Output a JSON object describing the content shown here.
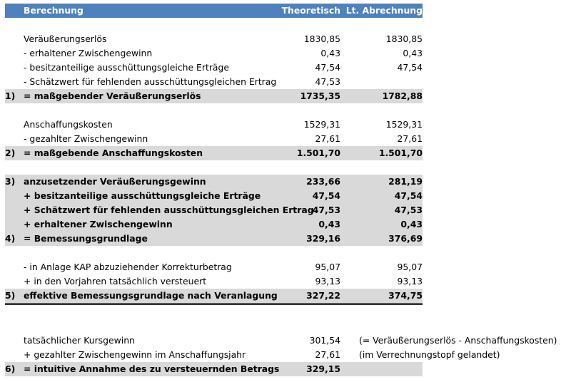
{
  "header": {
    "label": "Berechnung",
    "col_theoretisch": "Theoretisch",
    "col_abrechnung": "Lt. Abrechnung"
  },
  "rows": [
    {
      "num": "",
      "label": "Veräußerungserlös",
      "theo": "1830,85",
      "abr": "1830,85"
    },
    {
      "num": "",
      "label": "- erhaltener Zwischengewinn",
      "theo": "0,43",
      "abr": "0,43"
    },
    {
      "num": "",
      "label": "- besitzanteilige ausschüttungsgleiche Erträge",
      "theo": "47,54",
      "abr": "47,54"
    },
    {
      "num": "",
      "label": "- Schätzwert für fehlenden ausschüttungsgleichen Ertrag",
      "theo": "47,53",
      "abr": ""
    },
    {
      "num": "1)",
      "label": "= maßgebender Veräußerungserlös",
      "theo": "1735,35",
      "abr": "1782,88"
    },
    {
      "num": "",
      "label": "Anschaffungskosten",
      "theo": "1529,31",
      "abr": "1529,31"
    },
    {
      "num": "",
      "label": "- gezahlter Zwischengewinn",
      "theo": "27,61",
      "abr": "27,61"
    },
    {
      "num": "2)",
      "label": "= maßgebende Anschaffungskosten",
      "theo": "1.501,70",
      "abr": "1.501,70"
    },
    {
      "num": "3)",
      "label": "anzusetzender Veräußerungsgewinn",
      "theo": "233,66",
      "abr": "281,19"
    },
    {
      "num": "",
      "label": "+ besitzanteilige ausschüttungsgleiche Erträge",
      "theo": "47,54",
      "abr": "47,54"
    },
    {
      "num": "",
      "label": "+ Schätzwert für fehlenden ausschüttungsgleichen Ertrag",
      "theo": "47,53",
      "abr": "47,53"
    },
    {
      "num": "",
      "label": "+ erhaltener Zwischengewinn",
      "theo": "0,43",
      "abr": "0,43"
    },
    {
      "num": "4)",
      "label": "= Bemessungsgrundlage",
      "theo": "329,16",
      "abr": "376,69"
    },
    {
      "num": "",
      "label": "- in Anlage KAP abzuziehender Korrekturbetrag",
      "theo": "95,07",
      "abr": "95,07"
    },
    {
      "num": "",
      "label": "+ in den Vorjahren tatsächlich versteuert",
      "theo": "93,13",
      "abr": "93,13"
    },
    {
      "num": "5)",
      "label": "effektive Bemessungsgrundlage nach Veranlagung",
      "theo": "327,22",
      "abr": "374,75"
    },
    {
      "num": "",
      "label": "tatsächlicher Kursgewinn",
      "theo": "301,54",
      "abr": ""
    },
    {
      "num": "",
      "label": "+ gezahlter Zwischengewinn im Anschaffungsjahr",
      "theo": "27,61",
      "abr": ""
    },
    {
      "num": "6)",
      "label": "= intuitive Annahme des zu versteuernden Betrags",
      "theo": "329,15",
      "abr": ""
    }
  ],
  "notes": {
    "kursgewinn": "(= Veräußerungserlös - Anschaffungskosten)",
    "zwischengewinn": "(im Verrechnungstopf gelandet)"
  }
}
